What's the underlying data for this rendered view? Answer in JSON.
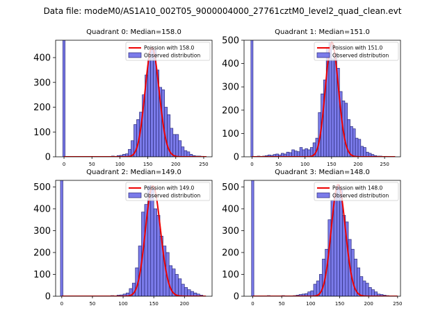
{
  "figure": {
    "suptitle": "Data file: modeM0/AS1A10_002T05_9000004000_27761cztM0_level2_quad_clean.evt"
  },
  "colors": {
    "bars": "#7b7bea",
    "bar_edge": "#2a2a7a",
    "curve": "#ee0000"
  },
  "chart_data": [
    {
      "type": "bar",
      "title": "Quadrant 0: Median=158.0",
      "legend": {
        "curve": "Poission with 158.0",
        "bars": "Observed distribution",
        "placement": "top-right"
      },
      "xlim": [
        -15,
        265
      ],
      "ylim": [
        0,
        470
      ],
      "xticks": [
        "0",
        "50",
        "100",
        "150",
        "200",
        "250"
      ],
      "yticks": [
        "0",
        "100",
        "200",
        "300",
        "400"
      ],
      "bin_width": 5,
      "spike": {
        "x": 0,
        "value": 470
      },
      "bins": [
        {
          "x": 85,
          "value": 3
        },
        {
          "x": 90,
          "value": 2
        },
        {
          "x": 95,
          "value": 5
        },
        {
          "x": 100,
          "value": 6
        },
        {
          "x": 105,
          "value": 10
        },
        {
          "x": 110,
          "value": 12
        },
        {
          "x": 115,
          "value": 30
        },
        {
          "x": 120,
          "value": 65
        },
        {
          "x": 125,
          "value": 130
        },
        {
          "x": 130,
          "value": 150
        },
        {
          "x": 135,
          "value": 180
        },
        {
          "x": 140,
          "value": 250
        },
        {
          "x": 145,
          "value": 330
        },
        {
          "x": 150,
          "value": 395
        },
        {
          "x": 155,
          "value": 440
        },
        {
          "x": 160,
          "value": 430
        },
        {
          "x": 165,
          "value": 350
        },
        {
          "x": 170,
          "value": 280
        },
        {
          "x": 175,
          "value": 270
        },
        {
          "x": 180,
          "value": 200
        },
        {
          "x": 185,
          "value": 170
        },
        {
          "x": 190,
          "value": 115
        },
        {
          "x": 195,
          "value": 90
        },
        {
          "x": 200,
          "value": 90
        },
        {
          "x": 205,
          "value": 65
        },
        {
          "x": 210,
          "value": 40
        },
        {
          "x": 215,
          "value": 25
        },
        {
          "x": 220,
          "value": 20
        },
        {
          "x": 225,
          "value": 10
        },
        {
          "x": 230,
          "value": 5
        },
        {
          "x": 235,
          "value": 3
        },
        {
          "x": 240,
          "value": 3
        },
        {
          "x": 245,
          "value": 2
        }
      ],
      "poisson_mean": 158.0,
      "curve_x": [
        0,
        255
      ]
    },
    {
      "type": "bar",
      "title": "Quadrant 1: Median=151.0",
      "legend": {
        "curve": "Poission with 151.0",
        "bars": "Observed distribution",
        "placement": "top-right"
      },
      "xlim": [
        -15,
        280
      ],
      "ylim": [
        0,
        500
      ],
      "xticks": [
        "0",
        "50",
        "100",
        "150",
        "200",
        "250"
      ],
      "yticks": [
        "0",
        "100",
        "200",
        "300",
        "400",
        "500"
      ],
      "bin_width": 5,
      "spike": {
        "x": 0,
        "value": 500
      },
      "bins": [
        {
          "x": 10,
          "value": 3
        },
        {
          "x": 15,
          "value": 2
        },
        {
          "x": 20,
          "value": 3
        },
        {
          "x": 25,
          "value": 5
        },
        {
          "x": 30,
          "value": 8
        },
        {
          "x": 35,
          "value": 6
        },
        {
          "x": 40,
          "value": 10
        },
        {
          "x": 45,
          "value": 12
        },
        {
          "x": 50,
          "value": 8
        },
        {
          "x": 55,
          "value": 15
        },
        {
          "x": 60,
          "value": 12
        },
        {
          "x": 65,
          "value": 20
        },
        {
          "x": 70,
          "value": 18
        },
        {
          "x": 75,
          "value": 30
        },
        {
          "x": 80,
          "value": 25
        },
        {
          "x": 85,
          "value": 22
        },
        {
          "x": 90,
          "value": 40
        },
        {
          "x": 95,
          "value": 30
        },
        {
          "x": 100,
          "value": 35
        },
        {
          "x": 105,
          "value": 30
        },
        {
          "x": 110,
          "value": 40
        },
        {
          "x": 115,
          "value": 60
        },
        {
          "x": 120,
          "value": 80
        },
        {
          "x": 125,
          "value": 190
        },
        {
          "x": 130,
          "value": 270
        },
        {
          "x": 135,
          "value": 330
        },
        {
          "x": 140,
          "value": 470
        },
        {
          "x": 145,
          "value": 490
        },
        {
          "x": 150,
          "value": 420
        },
        {
          "x": 155,
          "value": 440
        },
        {
          "x": 160,
          "value": 380
        },
        {
          "x": 165,
          "value": 280
        },
        {
          "x": 170,
          "value": 240
        },
        {
          "x": 175,
          "value": 230
        },
        {
          "x": 180,
          "value": 160
        },
        {
          "x": 185,
          "value": 130
        },
        {
          "x": 190,
          "value": 120
        },
        {
          "x": 195,
          "value": 80
        },
        {
          "x": 200,
          "value": 75
        },
        {
          "x": 205,
          "value": 45
        },
        {
          "x": 210,
          "value": 40
        },
        {
          "x": 215,
          "value": 20
        },
        {
          "x": 220,
          "value": 15
        },
        {
          "x": 225,
          "value": 10
        },
        {
          "x": 230,
          "value": 5
        },
        {
          "x": 235,
          "value": 3
        },
        {
          "x": 240,
          "value": 3
        },
        {
          "x": 250,
          "value": 2
        }
      ],
      "poisson_mean": 151.0,
      "curve_x": [
        0,
        270
      ]
    },
    {
      "type": "bar",
      "title": "Quadrant 2: Median=149.0",
      "legend": {
        "curve": "Poission with 149.0",
        "bars": "Observed distribution",
        "placement": "top-right"
      },
      "xlim": [
        -10,
        245
      ],
      "ylim": [
        0,
        530
      ],
      "xticks": [
        "0",
        "50",
        "100",
        "150",
        "200"
      ],
      "yticks": [
        "0",
        "100",
        "200",
        "300",
        "400",
        "500"
      ],
      "bin_width": 5,
      "spike": {
        "x": 0,
        "value": 530
      },
      "bins": [
        {
          "x": 80,
          "value": 3
        },
        {
          "x": 85,
          "value": 2
        },
        {
          "x": 90,
          "value": 5
        },
        {
          "x": 95,
          "value": 6
        },
        {
          "x": 100,
          "value": 10
        },
        {
          "x": 105,
          "value": 15
        },
        {
          "x": 110,
          "value": 35
        },
        {
          "x": 115,
          "value": 60
        },
        {
          "x": 120,
          "value": 130
        },
        {
          "x": 125,
          "value": 230
        },
        {
          "x": 130,
          "value": 385
        },
        {
          "x": 135,
          "value": 420
        },
        {
          "x": 140,
          "value": 505
        },
        {
          "x": 145,
          "value": 490
        },
        {
          "x": 150,
          "value": 400
        },
        {
          "x": 155,
          "value": 370
        },
        {
          "x": 160,
          "value": 275
        },
        {
          "x": 165,
          "value": 230
        },
        {
          "x": 170,
          "value": 200
        },
        {
          "x": 175,
          "value": 140
        },
        {
          "x": 180,
          "value": 125
        },
        {
          "x": 185,
          "value": 100
        },
        {
          "x": 190,
          "value": 80
        },
        {
          "x": 195,
          "value": 55
        },
        {
          "x": 200,
          "value": 40
        },
        {
          "x": 205,
          "value": 30
        },
        {
          "x": 210,
          "value": 22
        },
        {
          "x": 215,
          "value": 15
        },
        {
          "x": 220,
          "value": 10
        },
        {
          "x": 225,
          "value": 5
        }
      ],
      "poisson_mean": 149.0,
      "curve_x": [
        0,
        235
      ]
    },
    {
      "type": "bar",
      "title": "Quadrant 3: Median=148.0",
      "legend": {
        "curve": "Poission with 148.0",
        "bars": "Observed distribution",
        "placement": "top-right"
      },
      "xlim": [
        -15,
        255
      ],
      "ylim": [
        0,
        530
      ],
      "xticks": [
        "0",
        "50",
        "100",
        "150",
        "200",
        "250"
      ],
      "yticks": [
        "0",
        "100",
        "200",
        "300",
        "400",
        "500"
      ],
      "bin_width": 5,
      "spike": {
        "x": 0,
        "value": 530
      },
      "bins": [
        {
          "x": 25,
          "value": 3
        },
        {
          "x": 35,
          "value": 2
        },
        {
          "x": 50,
          "value": 3
        },
        {
          "x": 60,
          "value": 2
        },
        {
          "x": 70,
          "value": 3
        },
        {
          "x": 75,
          "value": 5
        },
        {
          "x": 80,
          "value": 8
        },
        {
          "x": 85,
          "value": 10
        },
        {
          "x": 90,
          "value": 12
        },
        {
          "x": 95,
          "value": 20
        },
        {
          "x": 100,
          "value": 25
        },
        {
          "x": 105,
          "value": 55
        },
        {
          "x": 110,
          "value": 70
        },
        {
          "x": 115,
          "value": 100
        },
        {
          "x": 120,
          "value": 170
        },
        {
          "x": 125,
          "value": 215
        },
        {
          "x": 130,
          "value": 350
        },
        {
          "x": 135,
          "value": 440
        },
        {
          "x": 140,
          "value": 470
        },
        {
          "x": 145,
          "value": 510
        },
        {
          "x": 150,
          "value": 490
        },
        {
          "x": 155,
          "value": 370
        },
        {
          "x": 160,
          "value": 340
        },
        {
          "x": 165,
          "value": 260
        },
        {
          "x": 170,
          "value": 215
        },
        {
          "x": 175,
          "value": 170
        },
        {
          "x": 180,
          "value": 130
        },
        {
          "x": 185,
          "value": 90
        },
        {
          "x": 190,
          "value": 70
        },
        {
          "x": 195,
          "value": 60
        },
        {
          "x": 200,
          "value": 40
        },
        {
          "x": 205,
          "value": 30
        },
        {
          "x": 210,
          "value": 20
        },
        {
          "x": 215,
          "value": 10
        },
        {
          "x": 220,
          "value": 8
        },
        {
          "x": 225,
          "value": 5
        },
        {
          "x": 230,
          "value": 3
        }
      ],
      "poisson_mean": 148.0,
      "curve_x": [
        0,
        250
      ]
    }
  ]
}
